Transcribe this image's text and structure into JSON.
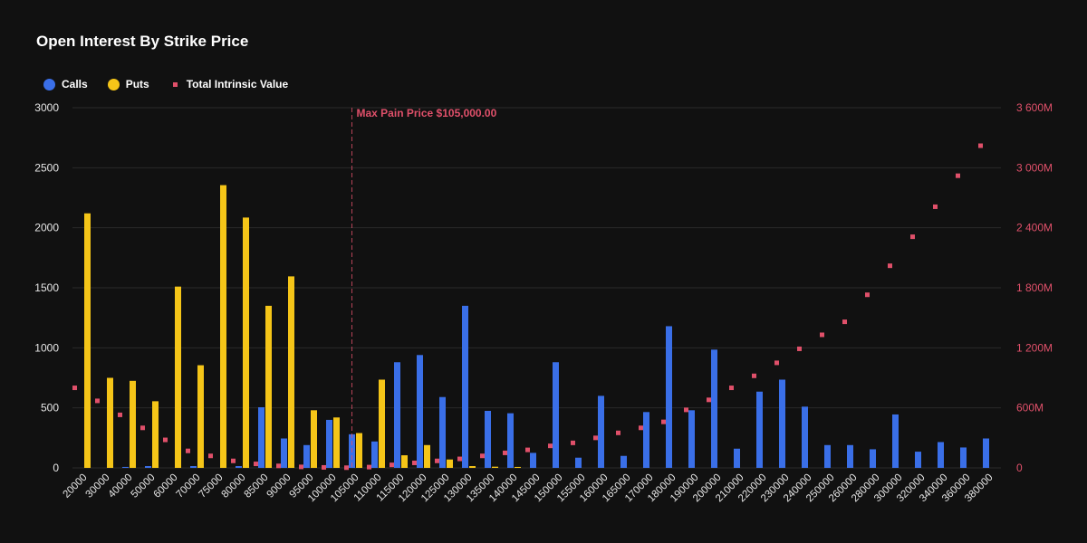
{
  "colors": {
    "calls": "#3a6fe8",
    "puts": "#f5c518",
    "intrinsic": "#e0506a",
    "grid": "#2a2a2a",
    "background": "#111111"
  },
  "chart_data": {
    "type": "bar",
    "title": "Open Interest By Strike Price",
    "legend": [
      "Calls",
      "Puts",
      "Total Intrinsic Value"
    ],
    "legend_position": "top-left",
    "categories": [
      "20000",
      "30000",
      "40000",
      "50000",
      "60000",
      "70000",
      "75000",
      "80000",
      "85000",
      "90000",
      "95000",
      "100000",
      "105000",
      "110000",
      "115000",
      "120000",
      "125000",
      "130000",
      "135000",
      "140000",
      "145000",
      "150000",
      "155000",
      "160000",
      "165000",
      "170000",
      "180000",
      "190000",
      "200000",
      "210000",
      "220000",
      "230000",
      "240000",
      "250000",
      "260000",
      "280000",
      "300000",
      "320000",
      "340000",
      "360000",
      "380000"
    ],
    "series": [
      {
        "name": "Calls",
        "type": "bar",
        "axis": "left",
        "values": [
          0,
          0,
          8,
          15,
          0,
          15,
          0,
          15,
          505,
          245,
          190,
          400,
          280,
          220,
          880,
          940,
          590,
          1350,
          475,
          455,
          125,
          880,
          85,
          600,
          100,
          465,
          1180,
          480,
          985,
          160,
          635,
          735,
          510,
          190,
          190,
          155,
          445,
          135,
          215,
          170,
          245
        ]
      },
      {
        "name": "Puts",
        "type": "bar",
        "axis": "left",
        "values": [
          2120,
          750,
          725,
          555,
          1510,
          855,
          2355,
          2085,
          1350,
          1595,
          480,
          420,
          290,
          735,
          105,
          190,
          70,
          15,
          10,
          8,
          0,
          0,
          0,
          0,
          0,
          0,
          0,
          0,
          0,
          0,
          0,
          0,
          0,
          0,
          0,
          0,
          0,
          0,
          0,
          0,
          0
        ]
      },
      {
        "name": "Total Intrinsic Value",
        "type": "scatter",
        "axis": "right",
        "unit": "M",
        "values": [
          800,
          670,
          530,
          400,
          280,
          170,
          120,
          70,
          40,
          20,
          10,
          5,
          2,
          8,
          30,
          50,
          70,
          90,
          120,
          150,
          180,
          220,
          250,
          300,
          350,
          400,
          460,
          580,
          680,
          800,
          920,
          1050,
          1190,
          1330,
          1460,
          1730,
          2020,
          2310,
          2610,
          2920,
          3220
        ]
      }
    ],
    "yleft": {
      "min": 0,
      "max": 3000,
      "ticks": [
        "0",
        "500",
        "1000",
        "1500",
        "2000",
        "2500",
        "3000"
      ]
    },
    "yright": {
      "min": 0,
      "max": 3600,
      "ticks": [
        "0",
        "600M",
        "1 200M",
        "1 800M",
        "2 400M",
        "3 000M",
        "3 600M"
      ]
    },
    "grid": true,
    "annotation": {
      "category": "105000",
      "label": "Max Pain Price $105,000.00"
    }
  }
}
